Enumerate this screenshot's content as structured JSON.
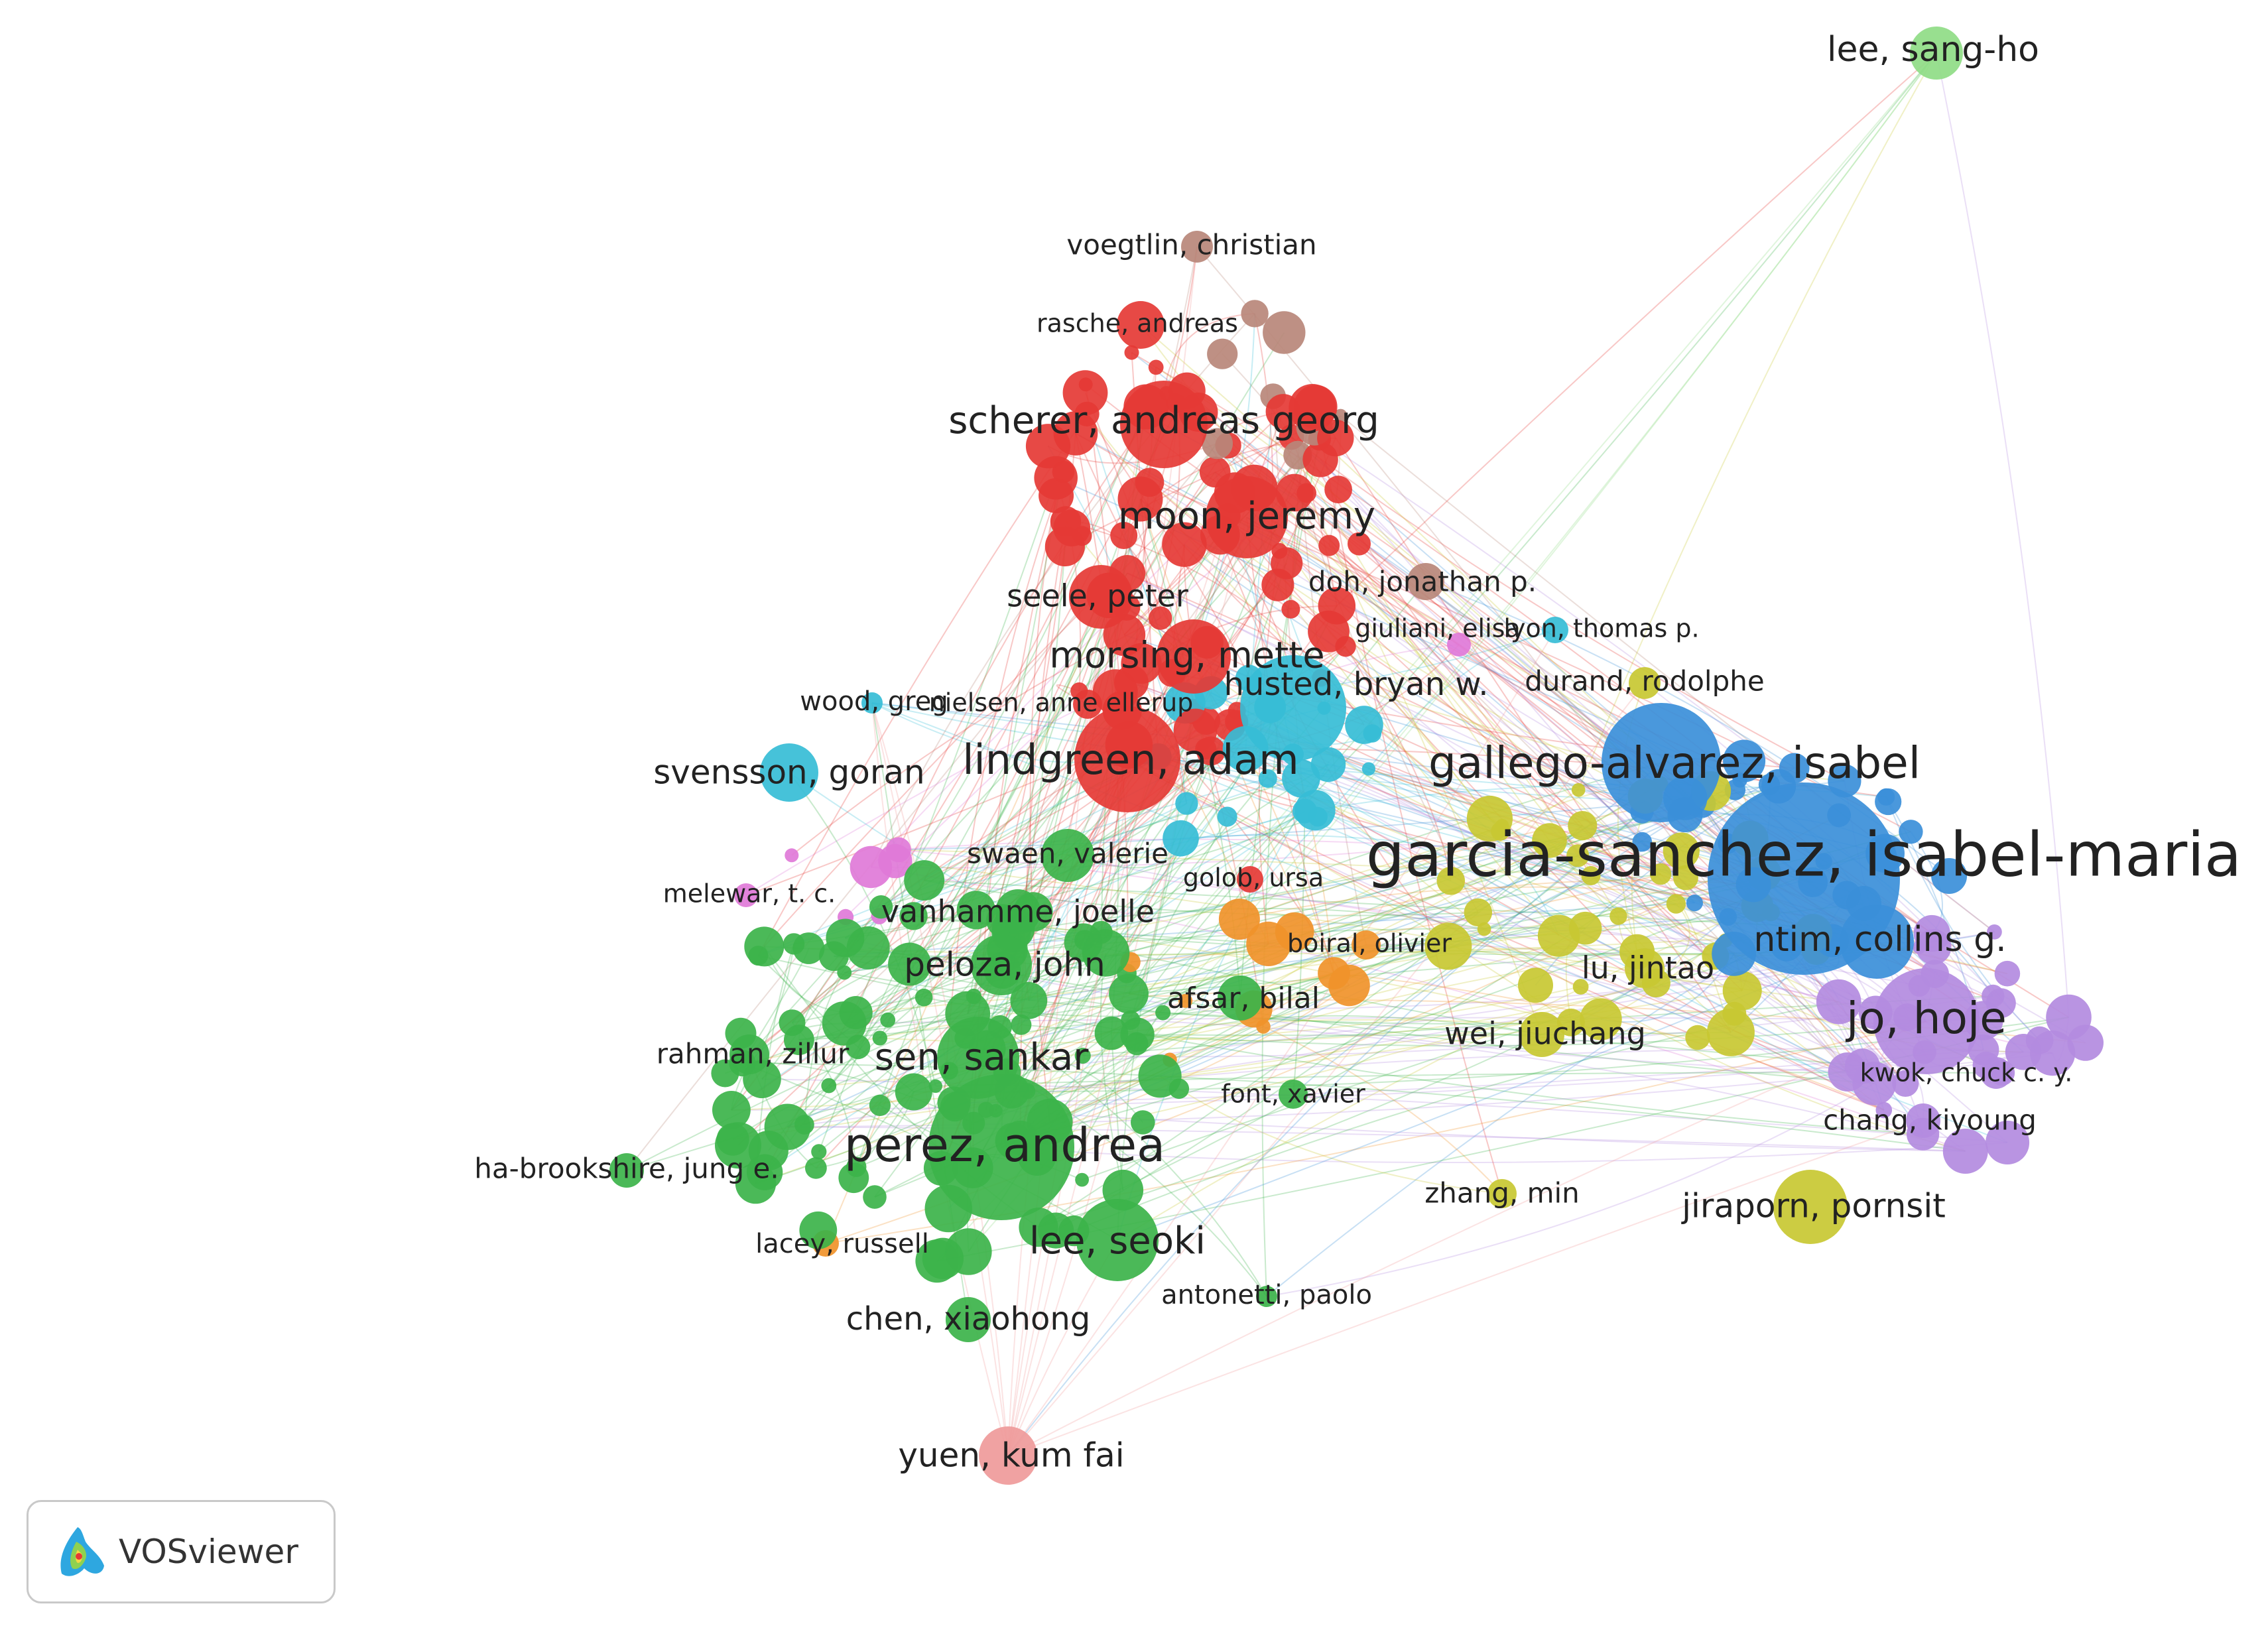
{
  "app": {
    "brand": "VOSviewer",
    "logo_icon": "vosviewer-logo-icon"
  },
  "clusters": {
    "red": "#e53935",
    "green": "#3cb34a",
    "blue": "#3b8fd9",
    "yellow": "#c8c832",
    "purple": "#b38be0",
    "cyan": "#36bdd6",
    "orange": "#f0932a",
    "brown": "#b8877a",
    "pink": "#e07ad8",
    "lightred": "#ef9a9a",
    "lightgreen": "#8fdc86"
  },
  "labels": [
    {
      "name": "lee, sang-ho",
      "cluster": "lightgreen"
    },
    {
      "name": "voegtlin, christian",
      "cluster": "brown"
    },
    {
      "name": "rasche, andreas",
      "cluster": "red"
    },
    {
      "name": "scherer, andreas georg",
      "cluster": "red"
    },
    {
      "name": "moon, jeremy",
      "cluster": "red"
    },
    {
      "name": "seele, peter",
      "cluster": "red"
    },
    {
      "name": "doh, jonathan p.",
      "cluster": "brown"
    },
    {
      "name": "giuliani, elisa",
      "cluster": "pink"
    },
    {
      "name": "lyon, thomas p.",
      "cluster": "cyan"
    },
    {
      "name": "morsing, mette",
      "cluster": "red"
    },
    {
      "name": "husted, bryan w.",
      "cluster": "cyan"
    },
    {
      "name": "durand, rodolphe",
      "cluster": "yellow"
    },
    {
      "name": "wood, greg",
      "cluster": "cyan"
    },
    {
      "name": "nielsen, anne ellerup",
      "cluster": "red"
    },
    {
      "name": "lindgreen, adam",
      "cluster": "red"
    },
    {
      "name": "gallego-alvarez, isabel",
      "cluster": "blue"
    },
    {
      "name": "svensson, goran",
      "cluster": "cyan"
    },
    {
      "name": "swaen, valerie",
      "cluster": "green"
    },
    {
      "name": "garcia-sanchez, isabel-maria",
      "cluster": "blue"
    },
    {
      "name": "melewar, t. c.",
      "cluster": "pink"
    },
    {
      "name": "golob, ursa",
      "cluster": "red"
    },
    {
      "name": "vanhamme, joelle",
      "cluster": "green"
    },
    {
      "name": "ntim, collins g.",
      "cluster": "blue"
    },
    {
      "name": "peloza, john",
      "cluster": "green"
    },
    {
      "name": "boiral, olivier",
      "cluster": "orange"
    },
    {
      "name": "lu, jintao",
      "cluster": "yellow"
    },
    {
      "name": "afsar, bilal",
      "cluster": "green"
    },
    {
      "name": "jo, hoje",
      "cluster": "purple"
    },
    {
      "name": "wei, jiuchang",
      "cluster": "yellow"
    },
    {
      "name": "rahman, zillur",
      "cluster": "green"
    },
    {
      "name": "sen, sankar",
      "cluster": "green"
    },
    {
      "name": "kwok, chuck c. y.",
      "cluster": "purple"
    },
    {
      "name": "font, xavier",
      "cluster": "green"
    },
    {
      "name": "chang, kiyoung",
      "cluster": "purple"
    },
    {
      "name": "perez, andrea",
      "cluster": "green"
    },
    {
      "name": "ha-brookshire, jung e.",
      "cluster": "green"
    },
    {
      "name": "zhang, min",
      "cluster": "yellow"
    },
    {
      "name": "jiraporn, pornsit",
      "cluster": "yellow"
    },
    {
      "name": "lee, seoki",
      "cluster": "green"
    },
    {
      "name": "lacey, russell",
      "cluster": "orange"
    },
    {
      "name": "antonetti, paolo",
      "cluster": "green"
    },
    {
      "name": "chen, xiaohong",
      "cluster": "green"
    },
    {
      "name": "yuen, kum fai",
      "cluster": "lightred"
    }
  ]
}
